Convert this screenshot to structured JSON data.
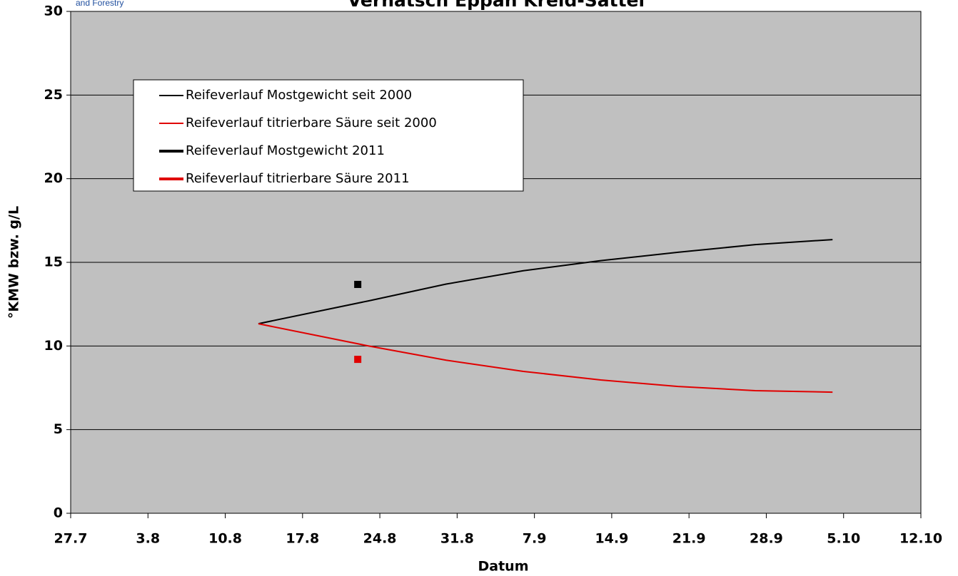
{
  "header": {
    "org": "and Forestry"
  },
  "chart_data": {
    "type": "line",
    "title": "Vernatsch Eppan Kreid-Sattel",
    "x_label": "Datum",
    "y_label": "°KMW bzw. g/L",
    "xlim": [
      208,
      285
    ],
    "xticks": [
      {
        "value": 208,
        "label": "27.7"
      },
      {
        "value": 215,
        "label": "3.8"
      },
      {
        "value": 222,
        "label": "10.8"
      },
      {
        "value": 229,
        "label": "17.8"
      },
      {
        "value": 236,
        "label": "24.8"
      },
      {
        "value": 243,
        "label": "31.8"
      },
      {
        "value": 250,
        "label": "7.9"
      },
      {
        "value": 257,
        "label": "14.9"
      },
      {
        "value": 264,
        "label": "21.9"
      },
      {
        "value": 271,
        "label": "28.9"
      },
      {
        "value": 278,
        "label": "5.10"
      },
      {
        "value": 285,
        "label": "12.10"
      }
    ],
    "ylim": [
      0,
      30
    ],
    "yticks": [
      0,
      5,
      10,
      15,
      20,
      25,
      30
    ],
    "grid": true,
    "plot_background": "#c0c0c0",
    "series": [
      {
        "name": "Reifeverlauf Mostgewicht seit 2000",
        "color": "#000000",
        "line_width": 2,
        "x": [
          225,
          235,
          242,
          249,
          256,
          263,
          270,
          277
        ],
        "values": [
          11.33,
          12.7,
          13.7,
          14.5,
          15.1,
          15.6,
          16.06,
          16.36
        ]
      },
      {
        "name": "Reifeverlauf titrierbare Säure seit 2000",
        "color": "#e00000",
        "line_width": 2,
        "x": [
          225,
          235,
          242,
          249,
          256,
          263,
          270,
          277
        ],
        "values": [
          11.33,
          10.0,
          9.15,
          8.48,
          7.97,
          7.58,
          7.33,
          7.24
        ]
      },
      {
        "name": "Reifeverlauf Mostgewicht 2011",
        "color": "#000000",
        "line_width": 4,
        "marker": "square",
        "x": [
          234
        ],
        "values": [
          13.68
        ]
      },
      {
        "name": "Reifeverlauf titrierbare Säure 2011",
        "color": "#e00000",
        "line_width": 4,
        "marker": "square",
        "x": [
          234
        ],
        "values": [
          9.2
        ]
      }
    ]
  }
}
